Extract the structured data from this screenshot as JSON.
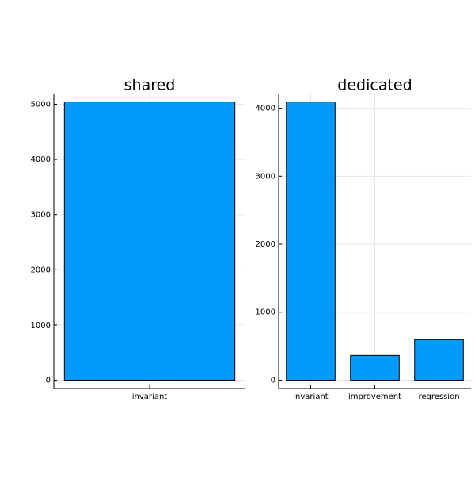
{
  "chart_data": [
    {
      "type": "bar",
      "title": "shared",
      "categories": [
        "invariant"
      ],
      "values": [
        5043
      ],
      "color": "#009af9",
      "ylim": [
        -151,
        5194
      ],
      "yticks": [
        0,
        1000,
        2000,
        3000,
        4000,
        5000
      ],
      "grid": true
    },
    {
      "type": "bar",
      "title": "dedicated",
      "categories": [
        "invariant",
        "improvement",
        "regression"
      ],
      "values": [
        4094,
        363,
        597
      ],
      "color": "#009af9",
      "ylim": [
        -123,
        4217
      ],
      "yticks": [
        0,
        1000,
        2000,
        3000,
        4000
      ],
      "grid": true
    }
  ]
}
